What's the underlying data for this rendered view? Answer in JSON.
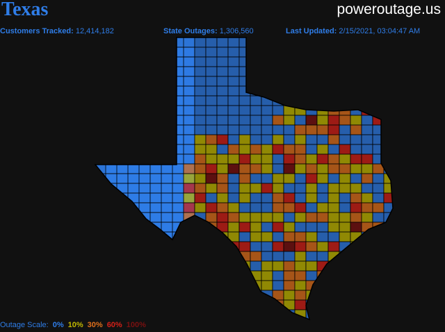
{
  "header": {
    "title": "Texas",
    "brand": "poweroutage.us"
  },
  "stats": [
    {
      "label": "Customers Tracked:",
      "value": "12,414,182"
    },
    {
      "label": "State Outages:",
      "value": "1,306,560"
    },
    {
      "label": "Last Updated:",
      "value": "2/15/2021, 03:04:47 AM"
    }
  ],
  "scale": {
    "label": "Outage Scale:",
    "steps": [
      {
        "label": "0%",
        "color": "#2f7de8"
      },
      {
        "label": "10%",
        "color": "#c2b800"
      },
      {
        "label": "30%",
        "color": "#e0701c"
      },
      {
        "label": "60%",
        "color": "#d42018"
      },
      {
        "label": "100%",
        "color": "#7a1010"
      }
    ]
  }
}
